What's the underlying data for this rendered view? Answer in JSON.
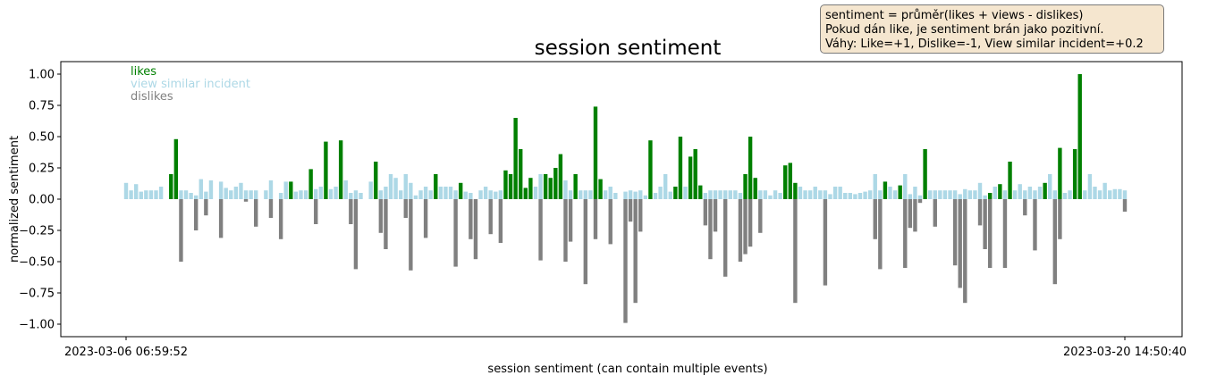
{
  "chart_data": {
    "type": "bar",
    "title": "session sentiment",
    "xlabel": "session sentiment (can contain multiple events)",
    "ylabel": "normalized sentiment",
    "ylim": [
      -1.1,
      1.1
    ],
    "yticks": [
      "1.00",
      "0.75",
      "0.50",
      "0.25",
      "0.00",
      "−0.25",
      "−0.50",
      "−0.75",
      "−1.00"
    ],
    "ytick_values": [
      1.0,
      0.75,
      0.5,
      0.25,
      0.0,
      -0.25,
      -0.5,
      -0.75,
      -1.0
    ],
    "xtick_labels": [
      "2023-03-06 06:59:52",
      "2023-03-20 14:50:40"
    ],
    "grid": false,
    "legend": {
      "placement": "top-left",
      "entries": [
        "likes",
        "view similar incident",
        "dislikes"
      ]
    },
    "colors": {
      "likes": "#008000",
      "view similar incident": "#add8e6",
      "dislikes": "#808080"
    },
    "annotation": [
      "sentiment = průměr(likes + views - dislikes)",
      "Pokud dán like, je sentiment brán jako pozitivní.",
      "Váhy: Like=+1, Dislike=-1, View similar incident=+0.2"
    ],
    "series": [
      {
        "name": "likes",
        "color": "#008000",
        "bars": [
          [
            9,
            0.2
          ],
          [
            10,
            0.48
          ],
          [
            33,
            0.14
          ],
          [
            37,
            0.24
          ],
          [
            40,
            0.46
          ],
          [
            43,
            0.47
          ],
          [
            50,
            0.3
          ],
          [
            62,
            0.2
          ],
          [
            67,
            0.13
          ],
          [
            76,
            0.23
          ],
          [
            77,
            0.2
          ],
          [
            78,
            0.65
          ],
          [
            79,
            0.4
          ],
          [
            80,
            0.09
          ],
          [
            81,
            0.17
          ],
          [
            84,
            0.2
          ],
          [
            85,
            0.17
          ],
          [
            86,
            0.25
          ],
          [
            87,
            0.36
          ],
          [
            90,
            0.2
          ],
          [
            94,
            0.74
          ],
          [
            95,
            0.16
          ],
          [
            105,
            0.47
          ],
          [
            110,
            0.1
          ],
          [
            111,
            0.5
          ],
          [
            113,
            0.34
          ],
          [
            114,
            0.4
          ],
          [
            115,
            0.11
          ],
          [
            124,
            0.2
          ],
          [
            125,
            0.5
          ],
          [
            126,
            0.17
          ],
          [
            132,
            0.27
          ],
          [
            133,
            0.29
          ],
          [
            134,
            0.13
          ],
          [
            152,
            0.14
          ],
          [
            155,
            0.11
          ],
          [
            160,
            0.4
          ],
          [
            173,
            0.05
          ],
          [
            175,
            0.12
          ],
          [
            177,
            0.3
          ],
          [
            184,
            0.13
          ],
          [
            187,
            0.41
          ],
          [
            190,
            0.4
          ],
          [
            191,
            1.0
          ]
        ]
      },
      {
        "name": "view similar incident",
        "color": "#add8e6",
        "bars": [
          [
            0,
            0.13
          ],
          [
            1,
            0.07
          ],
          [
            2,
            0.12
          ],
          [
            3,
            0.06
          ],
          [
            4,
            0.07
          ],
          [
            5,
            0.07
          ],
          [
            6,
            0.07
          ],
          [
            7,
            0.1
          ],
          [
            11,
            0.07
          ],
          [
            12,
            0.07
          ],
          [
            13,
            0.05
          ],
          [
            14,
            0.03
          ],
          [
            15,
            0.16
          ],
          [
            16,
            0.06
          ],
          [
            17,
            0.15
          ],
          [
            19,
            0.14
          ],
          [
            20,
            0.09
          ],
          [
            21,
            0.07
          ],
          [
            22,
            0.1
          ],
          [
            23,
            0.13
          ],
          [
            24,
            0.07
          ],
          [
            25,
            0.07
          ],
          [
            26,
            0.07
          ],
          [
            28,
            0.07
          ],
          [
            29,
            0.15
          ],
          [
            31,
            0.05
          ],
          [
            32,
            0.14
          ],
          [
            34,
            0.06
          ],
          [
            35,
            0.07
          ],
          [
            36,
            0.07
          ],
          [
            38,
            0.08
          ],
          [
            39,
            0.1
          ],
          [
            41,
            0.08
          ],
          [
            42,
            0.1
          ],
          [
            44,
            0.15
          ],
          [
            45,
            0.05
          ],
          [
            46,
            0.07
          ],
          [
            47,
            0.05
          ],
          [
            49,
            0.14
          ],
          [
            51,
            0.07
          ],
          [
            52,
            0.1
          ],
          [
            53,
            0.2
          ],
          [
            54,
            0.17
          ],
          [
            55,
            0.07
          ],
          [
            56,
            0.2
          ],
          [
            57,
            0.13
          ],
          [
            58,
            0.03
          ],
          [
            59,
            0.07
          ],
          [
            60,
            0.1
          ],
          [
            61,
            0.07
          ],
          [
            63,
            0.1
          ],
          [
            64,
            0.1
          ],
          [
            65,
            0.1
          ],
          [
            66,
            0.07
          ],
          [
            68,
            0.06
          ],
          [
            69,
            0.05
          ],
          [
            71,
            0.07
          ],
          [
            72,
            0.1
          ],
          [
            73,
            0.07
          ],
          [
            74,
            0.06
          ],
          [
            75,
            0.07
          ],
          [
            82,
            0.1
          ],
          [
            83,
            0.2
          ],
          [
            88,
            0.15
          ],
          [
            89,
            0.07
          ],
          [
            91,
            0.07
          ],
          [
            92,
            0.07
          ],
          [
            93,
            0.07
          ],
          [
            96,
            0.07
          ],
          [
            97,
            0.1
          ],
          [
            98,
            0.05
          ],
          [
            100,
            0.06
          ],
          [
            101,
            0.07
          ],
          [
            102,
            0.06
          ],
          [
            103,
            0.07
          ],
          [
            104,
            0.03
          ],
          [
            106,
            0.05
          ],
          [
            107,
            0.1
          ],
          [
            108,
            0.2
          ],
          [
            109,
            0.06
          ],
          [
            112,
            0.1
          ],
          [
            116,
            0.05
          ],
          [
            117,
            0.07
          ],
          [
            118,
            0.07
          ],
          [
            119,
            0.07
          ],
          [
            120,
            0.07
          ],
          [
            121,
            0.07
          ],
          [
            122,
            0.07
          ],
          [
            123,
            0.05
          ],
          [
            127,
            0.07
          ],
          [
            128,
            0.07
          ],
          [
            129,
            0.03
          ],
          [
            130,
            0.07
          ],
          [
            131,
            0.05
          ],
          [
            135,
            0.1
          ],
          [
            136,
            0.07
          ],
          [
            137,
            0.07
          ],
          [
            138,
            0.1
          ],
          [
            139,
            0.07
          ],
          [
            140,
            0.07
          ],
          [
            141,
            0.04
          ],
          [
            142,
            0.1
          ],
          [
            143,
            0.1
          ],
          [
            144,
            0.05
          ],
          [
            145,
            0.05
          ],
          [
            146,
            0.04
          ],
          [
            147,
            0.05
          ],
          [
            148,
            0.06
          ],
          [
            149,
            0.07
          ],
          [
            150,
            0.2
          ],
          [
            151,
            0.07
          ],
          [
            153,
            0.1
          ],
          [
            154,
            0.07
          ],
          [
            156,
            0.2
          ],
          [
            157,
            0.04
          ],
          [
            158,
            0.1
          ],
          [
            159,
            0.03
          ],
          [
            161,
            0.07
          ],
          [
            162,
            0.07
          ],
          [
            163,
            0.07
          ],
          [
            164,
            0.07
          ],
          [
            165,
            0.07
          ],
          [
            166,
            0.07
          ],
          [
            167,
            0.04
          ],
          [
            168,
            0.08
          ],
          [
            169,
            0.07
          ],
          [
            170,
            0.07
          ],
          [
            171,
            0.13
          ],
          [
            172,
            0.03
          ],
          [
            174,
            0.1
          ],
          [
            176,
            0.07
          ],
          [
            178,
            0.07
          ],
          [
            179,
            0.12
          ],
          [
            180,
            0.07
          ],
          [
            181,
            0.1
          ],
          [
            182,
            0.07
          ],
          [
            183,
            0.1
          ],
          [
            185,
            0.2
          ],
          [
            186,
            0.07
          ],
          [
            188,
            0.05
          ],
          [
            189,
            0.07
          ],
          [
            192,
            0.07
          ],
          [
            193,
            0.2
          ],
          [
            194,
            0.1
          ],
          [
            195,
            0.07
          ],
          [
            196,
            0.13
          ],
          [
            197,
            0.07
          ],
          [
            198,
            0.08
          ],
          [
            199,
            0.08
          ],
          [
            200,
            0.07
          ]
        ]
      },
      {
        "name": "dislikes",
        "color": "#808080",
        "bars": [
          [
            11,
            -0.5
          ],
          [
            14,
            -0.25
          ],
          [
            16,
            -0.13
          ],
          [
            19,
            -0.31
          ],
          [
            24,
            -0.02
          ],
          [
            26,
            -0.22
          ],
          [
            29,
            -0.15
          ],
          [
            31,
            -0.32
          ],
          [
            38,
            -0.2
          ],
          [
            45,
            -0.2
          ],
          [
            46,
            -0.56
          ],
          [
            51,
            -0.27
          ],
          [
            52,
            -0.4
          ],
          [
            56,
            -0.15
          ],
          [
            57,
            -0.57
          ],
          [
            60,
            -0.31
          ],
          [
            66,
            -0.54
          ],
          [
            69,
            -0.32
          ],
          [
            70,
            -0.48
          ],
          [
            73,
            -0.28
          ],
          [
            75,
            -0.35
          ],
          [
            83,
            -0.49
          ],
          [
            88,
            -0.5
          ],
          [
            89,
            -0.34
          ],
          [
            92,
            -0.68
          ],
          [
            94,
            -0.32
          ],
          [
            97,
            -0.36
          ],
          [
            100,
            -0.99
          ],
          [
            101,
            -0.18
          ],
          [
            102,
            -0.83
          ],
          [
            103,
            -0.26
          ],
          [
            116,
            -0.21
          ],
          [
            117,
            -0.48
          ],
          [
            118,
            -0.26
          ],
          [
            120,
            -0.62
          ],
          [
            123,
            -0.5
          ],
          [
            124,
            -0.44
          ],
          [
            125,
            -0.38
          ],
          [
            127,
            -0.27
          ],
          [
            134,
            -0.83
          ],
          [
            140,
            -0.69
          ],
          [
            150,
            -0.32
          ],
          [
            151,
            -0.56
          ],
          [
            156,
            -0.55
          ],
          [
            157,
            -0.23
          ],
          [
            158,
            -0.26
          ],
          [
            159,
            -0.03
          ],
          [
            162,
            -0.22
          ],
          [
            166,
            -0.53
          ],
          [
            167,
            -0.71
          ],
          [
            168,
            -0.83
          ],
          [
            171,
            -0.21
          ],
          [
            172,
            -0.4
          ],
          [
            173,
            -0.55
          ],
          [
            176,
            -0.55
          ],
          [
            180,
            -0.13
          ],
          [
            182,
            -0.41
          ],
          [
            186,
            -0.68
          ],
          [
            187,
            -0.32
          ],
          [
            200,
            -0.1
          ]
        ]
      }
    ]
  }
}
